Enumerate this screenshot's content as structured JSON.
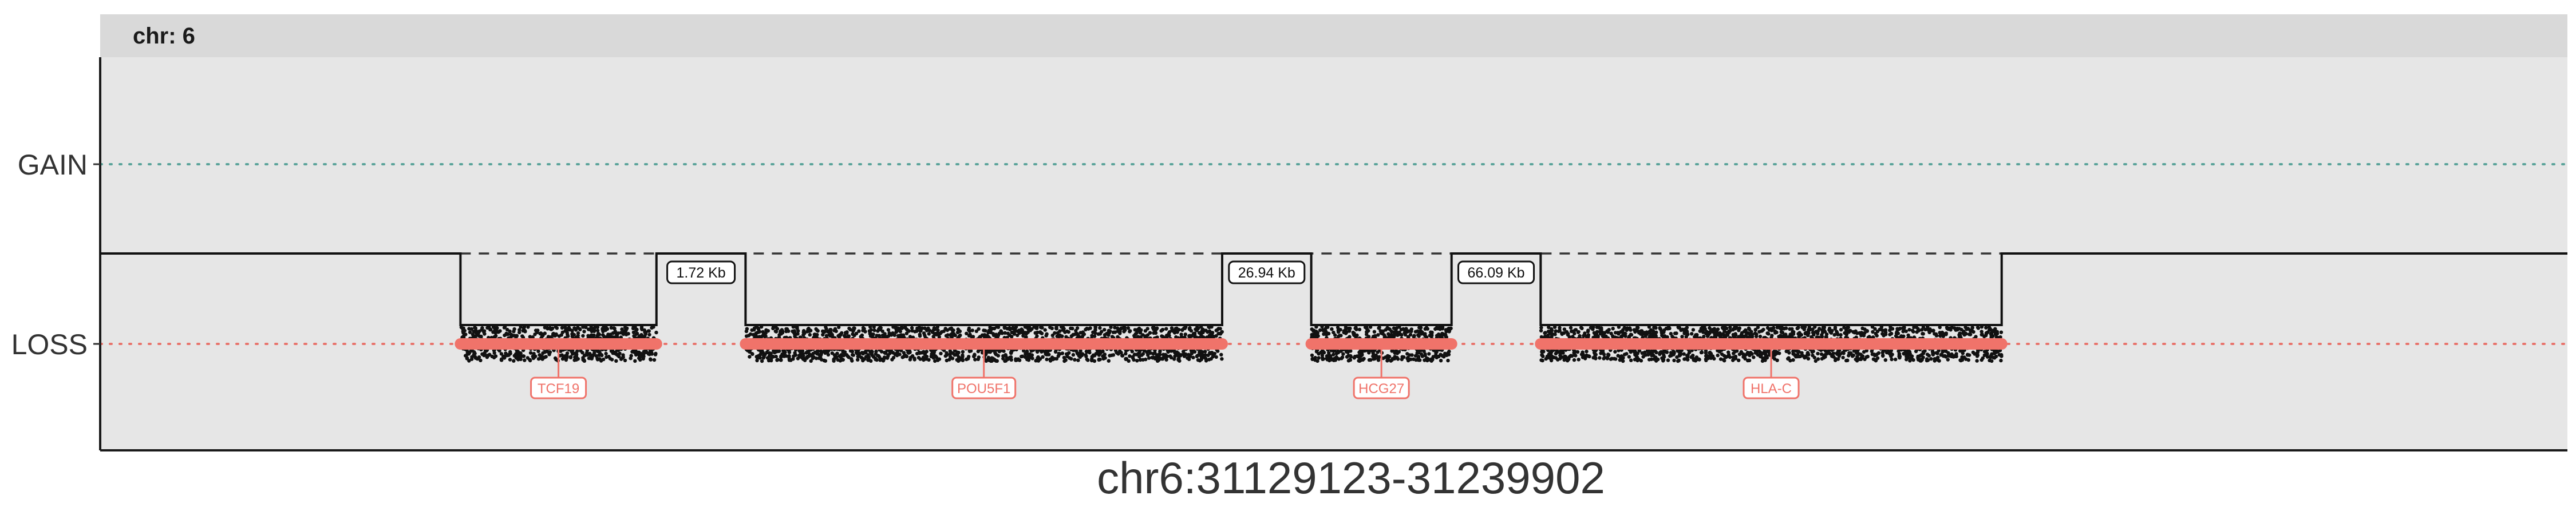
{
  "chart_data": {
    "type": "scatter",
    "facet_label": "chr: 6",
    "xlabel": "chr6:31129123-31239902",
    "ylabel": "",
    "y_categories": [
      "GAIN",
      "LOSS"
    ],
    "x_range": [
      31129123,
      31239902
    ],
    "grid": false,
    "legend": "none",
    "colors": {
      "gain_reference": "#5aa39a",
      "loss_reference": "#e8746c",
      "gene": "#f0736a",
      "probe": "#111111",
      "panel": "#e6e6e6"
    },
    "segments": [
      {
        "start": 31145300,
        "end": 31154100,
        "state": "LOSS"
      },
      {
        "start": 31158100,
        "end": 31179500,
        "state": "LOSS"
      },
      {
        "start": 31183500,
        "end": 31189800,
        "state": "LOSS"
      },
      {
        "start": 31193800,
        "end": 31214500,
        "state": "LOSS"
      }
    ],
    "gaps": [
      {
        "label": "1.72 Kb",
        "start": 31154100,
        "end": 31158100
      },
      {
        "label": "26.94 Kb",
        "start": 31179500,
        "end": 31183500
      },
      {
        "label": "66.09 Kb",
        "start": 31189800,
        "end": 31193800
      }
    ],
    "genes": [
      {
        "name": "TCF19",
        "start": 31145300,
        "end": 31154100
      },
      {
        "name": "POU5F1",
        "start": 31158100,
        "end": 31179500
      },
      {
        "name": "HCG27",
        "start": 31183500,
        "end": 31189800
      },
      {
        "name": "HLA-C",
        "start": 31193800,
        "end": 31214500
      }
    ]
  }
}
